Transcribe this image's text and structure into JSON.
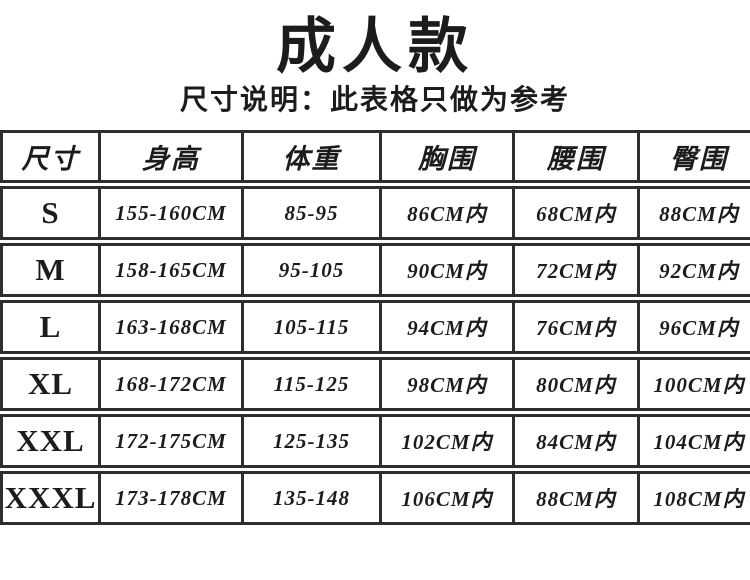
{
  "colors": {
    "text": "#1c1c1c",
    "border": "#2e2e2e",
    "background": "#ffffff"
  },
  "chart_data": {
    "type": "table",
    "title": "成人款",
    "subtitle": "尺寸说明：此表格只做为参考",
    "columns": [
      "尺寸",
      "身高",
      "体重",
      "胸围",
      "腰围",
      "臀围"
    ],
    "rows": [
      [
        "S",
        "155-160CM",
        "85-95",
        "86CM内",
        "68CM内",
        "88CM内"
      ],
      [
        "M",
        "158-165CM",
        "95-105",
        "90CM内",
        "72CM内",
        "92CM内"
      ],
      [
        "L",
        "163-168CM",
        "105-115",
        "94CM内",
        "76CM内",
        "96CM内"
      ],
      [
        "XL",
        "168-172CM",
        "115-125",
        "98CM内",
        "80CM内",
        "100CM内"
      ],
      [
        "XXL",
        "172-175CM",
        "125-135",
        "102CM内",
        "84CM内",
        "104CM内"
      ],
      [
        "XXXL",
        "173-178CM",
        "135-148",
        "106CM内",
        "88CM内",
        "108CM内"
      ]
    ]
  }
}
